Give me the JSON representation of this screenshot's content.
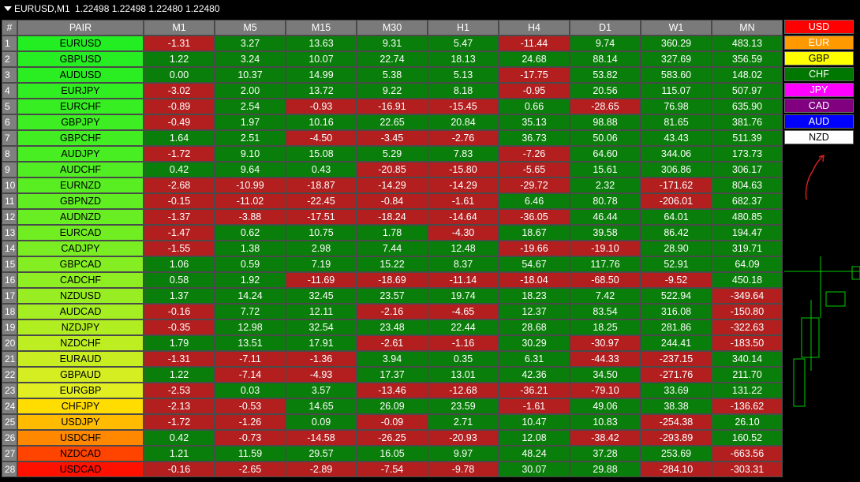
{
  "title": {
    "symbol": "EURUSD,M1",
    "quotes": "1.22498 1.22498 1.22480 1.22480"
  },
  "headers": [
    "#",
    "PAIR",
    "M1",
    "M5",
    "M15",
    "M30",
    "H1",
    "H4",
    "D1",
    "W1",
    "MN"
  ],
  "rows": [
    {
      "n": "1",
      "pair": "EURUSD",
      "color": "#22ee22",
      "vals": [
        "-1.31",
        "3.27",
        "13.63",
        "9.31",
        "5.47",
        "-11.44",
        "9.74",
        "360.29",
        "483.13"
      ]
    },
    {
      "n": "2",
      "pair": "GBPUSD",
      "color": "#26ee22",
      "vals": [
        "1.22",
        "3.24",
        "10.07",
        "22.74",
        "18.13",
        "24.68",
        "88.14",
        "327.69",
        "356.59"
      ]
    },
    {
      "n": "3",
      "pair": "AUDUSD",
      "color": "#2aee22",
      "vals": [
        "0.00",
        "10.37",
        "14.99",
        "5.38",
        "5.13",
        "-17.75",
        "53.82",
        "583.60",
        "148.02"
      ]
    },
    {
      "n": "4",
      "pair": "EURJPY",
      "color": "#30ee22",
      "vals": [
        "-3.02",
        "2.00",
        "13.72",
        "9.22",
        "8.18",
        "-0.95",
        "20.56",
        "115.07",
        "507.97"
      ]
    },
    {
      "n": "5",
      "pair": "EURCHF",
      "color": "#36ee22",
      "vals": [
        "-0.89",
        "2.54",
        "-0.93",
        "-16.91",
        "-15.45",
        "0.66",
        "-28.65",
        "76.98",
        "635.90"
      ]
    },
    {
      "n": "6",
      "pair": "GBPJPY",
      "color": "#3cee22",
      "vals": [
        "-0.49",
        "1.97",
        "10.16",
        "22.65",
        "20.84",
        "35.13",
        "98.88",
        "81.65",
        "381.76"
      ]
    },
    {
      "n": "7",
      "pair": "GBPCHF",
      "color": "#42ee22",
      "vals": [
        "1.64",
        "2.51",
        "-4.50",
        "-3.45",
        "-2.76",
        "36.73",
        "50.06",
        "43.43",
        "511.39"
      ]
    },
    {
      "n": "8",
      "pair": "AUDJPY",
      "color": "#48ee22",
      "vals": [
        "-1.72",
        "9.10",
        "15.08",
        "5.29",
        "7.83",
        "-7.26",
        "64.60",
        "344.06",
        "173.73"
      ]
    },
    {
      "n": "9",
      "pair": "AUDCHF",
      "color": "#50ee22",
      "vals": [
        "0.42",
        "9.64",
        "0.43",
        "-20.85",
        "-15.80",
        "-5.65",
        "15.61",
        "306.86",
        "306.17"
      ]
    },
    {
      "n": "10",
      "pair": "EURNZD",
      "color": "#58ee22",
      "vals": [
        "-2.68",
        "-10.99",
        "-18.87",
        "-14.29",
        "-14.29",
        "-29.72",
        "2.32",
        "-171.62",
        "804.63"
      ]
    },
    {
      "n": "11",
      "pair": "GBPNZD",
      "color": "#60ee22",
      "vals": [
        "-0.15",
        "-11.02",
        "-22.45",
        "-0.84",
        "-1.61",
        "6.46",
        "80.78",
        "-206.01",
        "682.37"
      ]
    },
    {
      "n": "12",
      "pair": "AUDNZD",
      "color": "#68ee22",
      "vals": [
        "-1.37",
        "-3.88",
        "-17.51",
        "-18.24",
        "-14.64",
        "-36.05",
        "46.44",
        "64.01",
        "480.85"
      ]
    },
    {
      "n": "13",
      "pair": "EURCAD",
      "color": "#70ee22",
      "vals": [
        "-1.47",
        "0.62",
        "10.75",
        "1.78",
        "-4.30",
        "18.67",
        "39.58",
        "86.42",
        "194.47"
      ]
    },
    {
      "n": "14",
      "pair": "CADJPY",
      "color": "#7aee22",
      "vals": [
        "-1.55",
        "1.38",
        "2.98",
        "7.44",
        "12.48",
        "-19.66",
        "-19.10",
        "28.90",
        "319.71"
      ]
    },
    {
      "n": "15",
      "pair": "GBPCAD",
      "color": "#84ee22",
      "vals": [
        "1.06",
        "0.59",
        "7.19",
        "15.22",
        "8.37",
        "54.67",
        "117.76",
        "52.91",
        "64.09"
      ]
    },
    {
      "n": "16",
      "pair": "CADCHF",
      "color": "#8eee22",
      "vals": [
        "0.58",
        "1.92",
        "-11.69",
        "-18.69",
        "-11.14",
        "-18.04",
        "-68.50",
        "-9.52",
        "450.18"
      ]
    },
    {
      "n": "17",
      "pair": "NZDUSD",
      "color": "#98ee22",
      "vals": [
        "1.37",
        "14.24",
        "32.45",
        "23.57",
        "19.74",
        "18.23",
        "7.42",
        "522.94",
        "-349.64"
      ]
    },
    {
      "n": "18",
      "pair": "AUDCAD",
      "color": "#a4ee22",
      "vals": [
        "-0.16",
        "7.72",
        "12.11",
        "-2.16",
        "-4.65",
        "12.37",
        "83.54",
        "316.08",
        "-150.80"
      ]
    },
    {
      "n": "19",
      "pair": "NZDJPY",
      "color": "#b0ee22",
      "vals": [
        "-0.35",
        "12.98",
        "32.54",
        "23.48",
        "22.44",
        "28.68",
        "18.25",
        "281.86",
        "-322.63"
      ]
    },
    {
      "n": "20",
      "pair": "NZDCHF",
      "color": "#bcee22",
      "vals": [
        "1.79",
        "13.51",
        "17.91",
        "-2.61",
        "-1.16",
        "30.29",
        "-30.97",
        "244.41",
        "-183.50"
      ]
    },
    {
      "n": "21",
      "pair": "EURAUD",
      "color": "#c8ee22",
      "vals": [
        "-1.31",
        "-7.11",
        "-1.36",
        "3.94",
        "0.35",
        "6.31",
        "-44.33",
        "-237.15",
        "340.14"
      ]
    },
    {
      "n": "22",
      "pair": "GBPAUD",
      "color": "#d4ee22",
      "vals": [
        "1.22",
        "-7.14",
        "-4.93",
        "17.37",
        "13.01",
        "42.36",
        "34.50",
        "-271.76",
        "211.70"
      ]
    },
    {
      "n": "23",
      "pair": "EURGBP",
      "color": "#e0ee22",
      "vals": [
        "-2.53",
        "0.03",
        "3.57",
        "-13.46",
        "-12.68",
        "-36.21",
        "-79.10",
        "33.69",
        "131.22"
      ]
    },
    {
      "n": "24",
      "pair": "CHFJPY",
      "color": "#ffdd00",
      "vals": [
        "-2.13",
        "-0.53",
        "14.65",
        "26.09",
        "23.59",
        "-1.61",
        "49.06",
        "38.38",
        "-136.62"
      ]
    },
    {
      "n": "25",
      "pair": "USDJPY",
      "color": "#ffbb00",
      "vals": [
        "-1.72",
        "-1.26",
        "0.09",
        "-0.09",
        "2.71",
        "10.47",
        "10.83",
        "-254.38",
        "26.10"
      ]
    },
    {
      "n": "26",
      "pair": "USDCHF",
      "color": "#ff8800",
      "vals": [
        "0.42",
        "-0.73",
        "-14.58",
        "-26.25",
        "-20.93",
        "12.08",
        "-38.42",
        "-293.89",
        "160.52"
      ]
    },
    {
      "n": "27",
      "pair": "NZDCAD",
      "color": "#ff4400",
      "vals": [
        "1.21",
        "11.59",
        "29.57",
        "16.05",
        "9.97",
        "48.24",
        "37.28",
        "253.69",
        "-663.56"
      ]
    },
    {
      "n": "28",
      "pair": "USDCAD",
      "color": "#ff1100",
      "vals": [
        "-0.16",
        "-2.65",
        "-2.89",
        "-7.54",
        "-9.78",
        "30.07",
        "29.88",
        "-284.10",
        "-303.31"
      ]
    }
  ],
  "currencies": [
    {
      "name": "USD",
      "bg": "#ff0000",
      "fg": "#ffffff"
    },
    {
      "name": "EUR",
      "bg": "#ff9900",
      "fg": "#ffffff"
    },
    {
      "name": "GBP",
      "bg": "#ffff00",
      "fg": "#000000"
    },
    {
      "name": "CHF",
      "bg": "#007700",
      "fg": "#ffffff"
    },
    {
      "name": "JPY",
      "bg": "#ff00ff",
      "fg": "#ffffff"
    },
    {
      "name": "CAD",
      "bg": "#800080",
      "fg": "#ffffff"
    },
    {
      "name": "AUD",
      "bg": "#0000ff",
      "fg": "#ffffff"
    },
    {
      "name": "NZD",
      "bg": "#ffffff",
      "fg": "#000000"
    }
  ]
}
